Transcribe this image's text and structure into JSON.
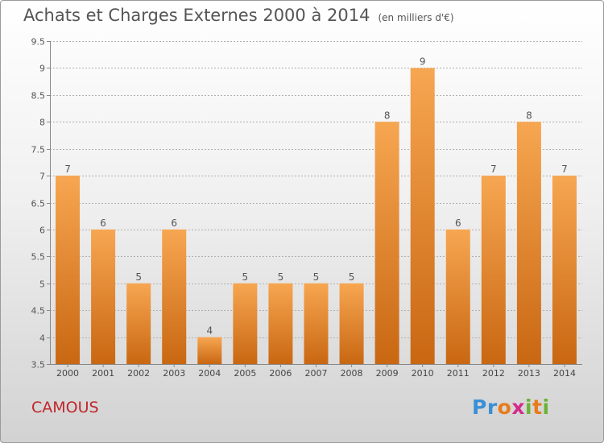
{
  "header": {
    "title": "Achats et Charges Externes 2000 à 2014",
    "subtitle": "(en milliers d'€)"
  },
  "footer": {
    "commune": "CAMOUS",
    "brand": "Proxiti"
  },
  "colors": {
    "bar_light": "#f7a651",
    "bar_dark": "#c96712",
    "title": "#555555",
    "commune": "#c0262c"
  },
  "chart_data": {
    "type": "bar",
    "title": "Achats et Charges Externes 2000 à 2014",
    "subtitle": "(en milliers d'€)",
    "xlabel": "",
    "ylabel": "",
    "categories": [
      "2000",
      "2001",
      "2002",
      "2003",
      "2004",
      "2005",
      "2006",
      "2007",
      "2008",
      "2009",
      "2010",
      "2011",
      "2012",
      "2013",
      "2014"
    ],
    "values": [
      7,
      6,
      5,
      6,
      4,
      5,
      5,
      5,
      5,
      8,
      9,
      6,
      7,
      8,
      7
    ],
    "data_labels": [
      "7",
      "6",
      "5",
      "6",
      "4",
      "5",
      "5",
      "5",
      "5",
      "8",
      "9",
      "6",
      "7",
      "8",
      "7"
    ],
    "ylim": [
      3.5,
      9.5
    ],
    "yticks": [
      3.5,
      4,
      4.5,
      5,
      5.5,
      6,
      6.5,
      7,
      7.5,
      8,
      8.5,
      9,
      9.5
    ],
    "ytick_labels": [
      "3.5",
      "4",
      "4.5",
      "5",
      "5.5",
      "6",
      "6.5",
      "7",
      "7.5",
      "8",
      "8.5",
      "9",
      "9.5"
    ],
    "grid": "horizontal dashed",
    "legend": "none"
  }
}
